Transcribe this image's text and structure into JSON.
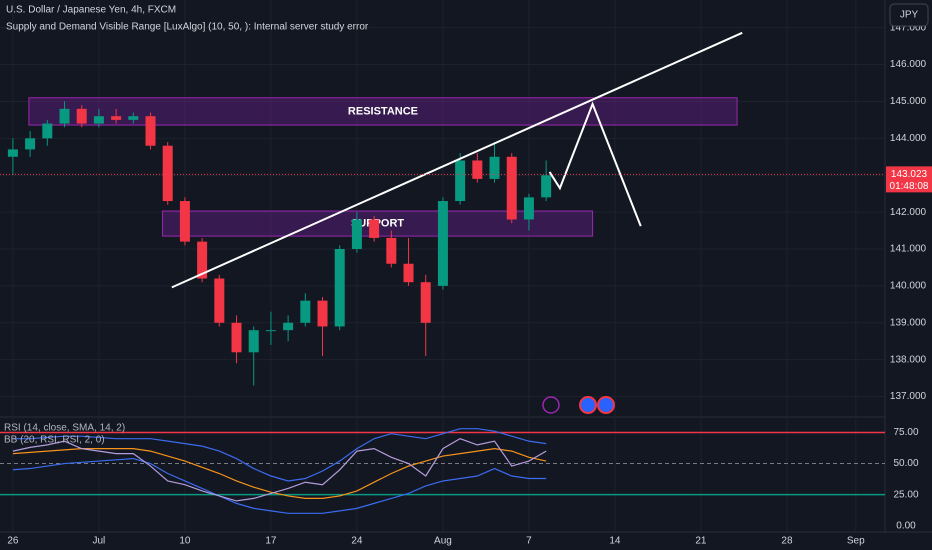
{
  "chart_data": [
    {
      "type": "candlestick",
      "title": "U.S. Dollar / Japanese Yen, 4h, FXCM",
      "subtitle": "Supply and Demand Visible Range [LuxAlgo] (10, 50, ): Internal server study error",
      "currency": "JPY",
      "x": [
        0,
        1,
        2,
        3,
        4,
        5,
        6,
        7,
        8,
        9,
        10,
        11,
        12,
        13,
        14,
        15,
        16,
        17,
        18,
        19,
        20,
        21,
        22,
        23,
        24,
        25,
        26,
        27,
        28,
        29,
        30,
        31
      ],
      "open": [
        143.5,
        143.7,
        144.0,
        144.4,
        144.8,
        144.4,
        144.6,
        144.5,
        144.6,
        143.8,
        142.3,
        141.2,
        140.2,
        139.0,
        138.2,
        138.8,
        138.8,
        139.0,
        139.6,
        138.9,
        141.0,
        141.8,
        141.3,
        140.6,
        140.1,
        140.0,
        142.3,
        143.4,
        142.9,
        143.5,
        141.8,
        142.4
      ],
      "high": [
        144.0,
        144.2,
        144.5,
        145.0,
        144.9,
        144.8,
        144.8,
        144.7,
        144.7,
        143.9,
        142.4,
        141.3,
        140.3,
        139.2,
        138.9,
        139.3,
        139.2,
        139.8,
        139.7,
        141.1,
        142.0,
        141.9,
        141.5,
        141.3,
        140.3,
        142.4,
        143.6,
        143.6,
        143.9,
        143.6,
        142.5,
        143.4
      ],
      "low": [
        143.0,
        143.5,
        143.8,
        144.3,
        144.3,
        144.3,
        144.4,
        144.4,
        143.7,
        142.2,
        141.1,
        140.1,
        138.9,
        137.9,
        137.3,
        138.4,
        138.5,
        138.9,
        138.1,
        138.8,
        140.9,
        141.2,
        140.5,
        140.0,
        138.1,
        139.9,
        142.2,
        142.8,
        142.8,
        141.7,
        141.5,
        142.3
      ],
      "close": [
        143.7,
        144.0,
        144.4,
        144.8,
        144.4,
        144.6,
        144.5,
        144.6,
        143.8,
        142.3,
        141.2,
        140.2,
        139.0,
        138.2,
        138.8,
        138.8,
        139.0,
        139.6,
        138.9,
        141.0,
        141.8,
        141.3,
        140.6,
        140.1,
        139.0,
        142.3,
        143.4,
        142.9,
        143.5,
        141.8,
        142.4,
        143.0
      ],
      "up_color": "#089981",
      "down_color": "#f23645",
      "xlim": [
        -0.75,
        50.7
      ],
      "xticks": [
        {
          "value": 0,
          "label": "26"
        },
        {
          "value": 5,
          "label": "Jul"
        },
        {
          "value": 10,
          "label": "10"
        },
        {
          "value": 15,
          "label": "17"
        },
        {
          "value": 20,
          "label": "24"
        },
        {
          "value": 25,
          "label": "Aug"
        },
        {
          "value": 30,
          "label": "7"
        },
        {
          "value": 35,
          "label": "14"
        },
        {
          "value": 40,
          "label": "21"
        },
        {
          "value": 45,
          "label": "28"
        },
        {
          "value": 49,
          "label": "Sep"
        }
      ],
      "ylim": [
        136.5,
        147.75
      ],
      "yticks": [
        {
          "value": 137,
          "label": "137.000"
        },
        {
          "value": 138,
          "label": "138.000"
        },
        {
          "value": 139,
          "label": "139.000"
        },
        {
          "value": 140,
          "label": "140.000"
        },
        {
          "value": 141,
          "label": "141.000"
        },
        {
          "value": 142,
          "label": "142.000"
        },
        {
          "value": 143,
          "label": "143.000"
        },
        {
          "value": 144,
          "label": "144.000"
        },
        {
          "value": 145,
          "label": "145.000"
        },
        {
          "value": 146,
          "label": "146.000"
        },
        {
          "value": 147,
          "label": "147.000"
        }
      ],
      "last_price": 143.023,
      "countdown": "01:48:08",
      "zones": [
        {
          "label": "RESISTANCE",
          "x": [
            0.93,
            42.1
          ],
          "y": [
            144.36,
            145.1
          ]
        },
        {
          "label": "SUPPORT",
          "x": [
            8.7,
            33.7
          ],
          "y": [
            141.35,
            142.03
          ]
        }
      ],
      "trendline": {
        "x": [
          9.24,
          42.4
        ],
        "y": [
          139.96,
          146.86
        ]
      },
      "projection": {
        "x": [
          31.2,
          31.8,
          33.7,
          36.5
        ],
        "y": [
          143.09,
          142.65,
          144.93,
          141.62
        ]
      }
    },
    {
      "type": "line",
      "legend": [
        "RSI (14, close, SMA, 14, 2)",
        "BB (20, RSI, RSI, 2, 0)"
      ],
      "x": [
        0,
        1,
        2,
        3,
        4,
        5,
        6,
        7,
        8,
        9,
        10,
        11,
        12,
        13,
        14,
        15,
        16,
        17,
        18,
        19,
        20,
        21,
        22,
        23,
        24,
        25,
        26,
        27,
        28,
        29,
        30,
        31
      ],
      "series": [
        {
          "color": "#3b6cf0",
          "values": [
            70,
            70,
            71,
            72,
            72,
            71,
            70,
            70,
            70,
            68,
            66,
            64,
            60,
            54,
            46,
            40,
            36,
            38,
            44,
            52,
            62,
            70,
            74,
            72,
            70,
            74,
            78,
            78,
            76,
            72,
            68,
            66
          ]
        },
        {
          "color": "#3b6cf0",
          "values": [
            45,
            46,
            48,
            50,
            51,
            52,
            53,
            54,
            50,
            42,
            36,
            30,
            24,
            18,
            14,
            12,
            10,
            10,
            10,
            12,
            14,
            18,
            22,
            26,
            32,
            36,
            38,
            40,
            46,
            40,
            38,
            38
          ]
        },
        {
          "name": "BB (20, RSI, RSI, 2, 0)",
          "color": "#f7931a",
          "values": [
            58,
            59,
            60,
            61,
            62,
            62,
            62,
            62,
            60,
            56,
            52,
            47,
            42,
            36,
            31,
            27,
            24,
            22,
            22,
            24,
            28,
            35,
            42,
            48,
            52,
            56,
            58,
            60,
            62,
            60,
            55,
            52
          ]
        },
        {
          "name": "RSI (14, close, SMA, 14, 2)",
          "color": "#b39ddb",
          "values": [
            60,
            63,
            65,
            68,
            62,
            60,
            58,
            58,
            48,
            36,
            33,
            28,
            24,
            20,
            22,
            26,
            30,
            35,
            33,
            45,
            60,
            62,
            55,
            50,
            40,
            62,
            70,
            65,
            68,
            48,
            52,
            60
          ]
        }
      ],
      "xlim": [
        -0.75,
        50.7
      ],
      "ylim": [
        -5,
        85
      ],
      "yticks": [
        {
          "value": 0,
          "label": "0.00"
        },
        {
          "value": 25,
          "label": "25.00"
        },
        {
          "value": 50,
          "label": "50.00"
        },
        {
          "value": 75,
          "label": "75.00"
        }
      ],
      "levels": [
        {
          "value": 75,
          "color": "#f23645"
        },
        {
          "value": 50,
          "color": "#787b86",
          "dash": true
        },
        {
          "value": 25,
          "color": "#089981"
        }
      ]
    }
  ]
}
